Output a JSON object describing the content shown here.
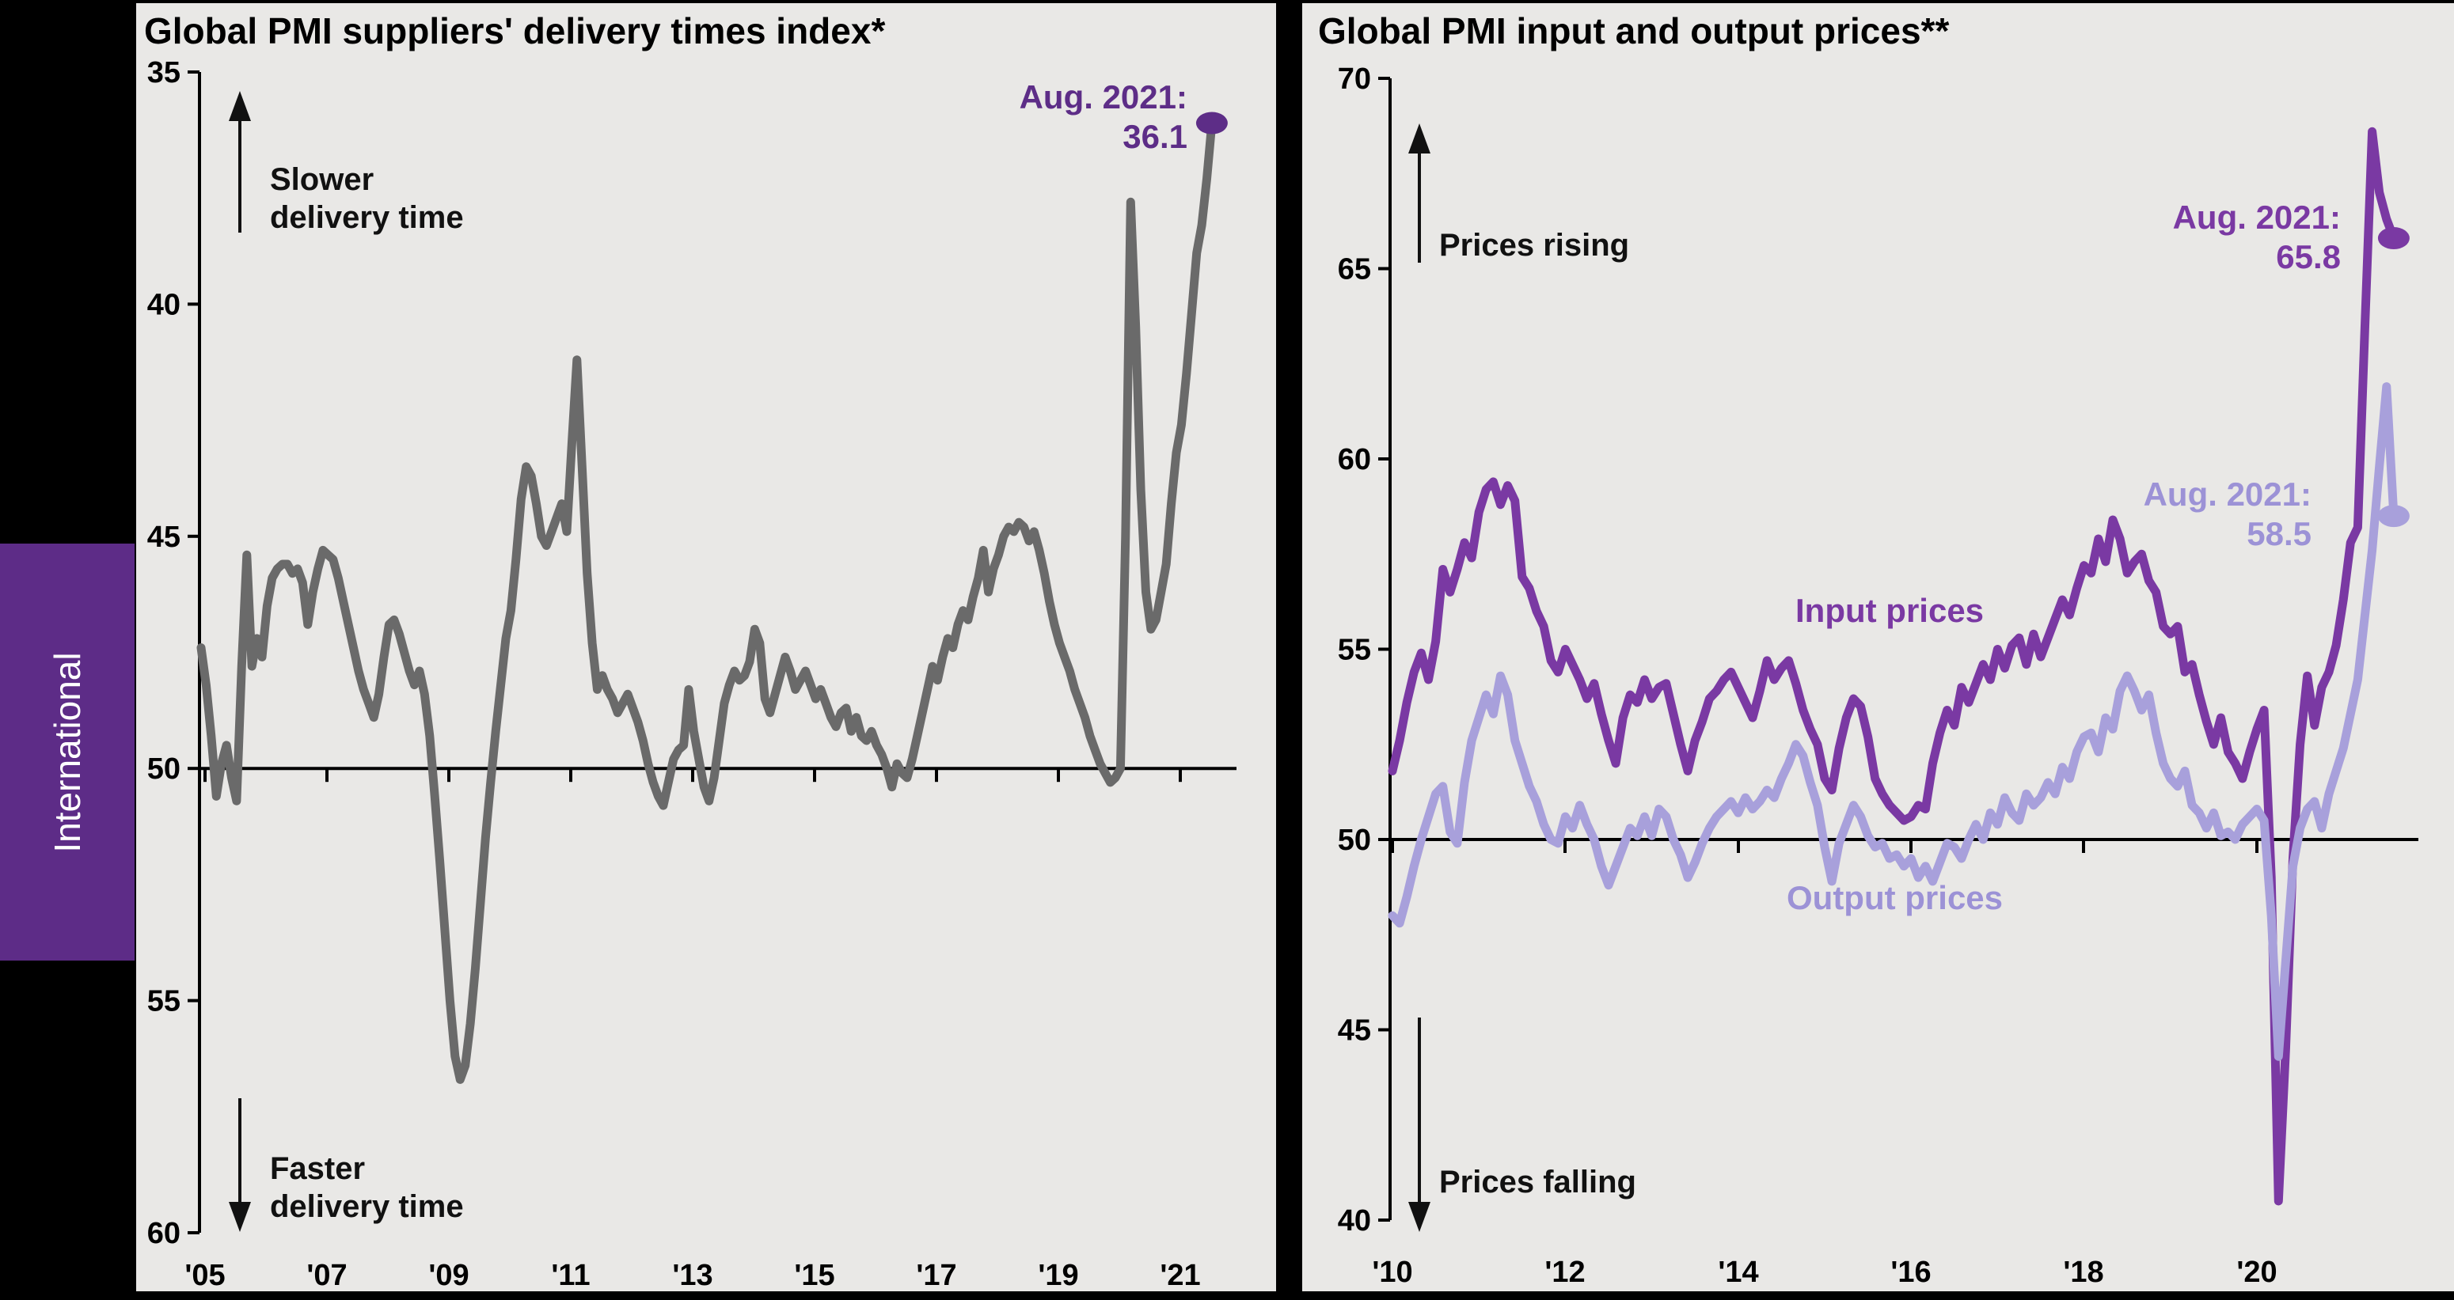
{
  "sidebar": {
    "label": "International",
    "bg_color": "#5d2c87"
  },
  "ui": {
    "left": {
      "title": "Global PMI suppliers' delivery times index*",
      "slower_label": "Slower\ndelivery time",
      "faster_label": "Faster\ndelivery time",
      "annotation": {
        "label": "Aug. 2021:",
        "value": "36.1",
        "color": "#5d2d87"
      }
    },
    "right": {
      "title": "Global PMI input and output prices**",
      "rising_label": "Prices rising",
      "falling_label": "Prices falling",
      "input_label": "Input prices",
      "output_label": "Output prices",
      "input_annotation": {
        "label": "Aug. 2021:",
        "value": "65.8",
        "color": "#7a39a3"
      },
      "output_annotation": {
        "label": "Aug. 2021:",
        "value": "58.5",
        "color": "#9c92d6"
      }
    }
  },
  "chart_data": [
    {
      "type": "line",
      "title": "Global PMI suppliers' delivery times index*",
      "y_axis_inverted": true,
      "ylim": [
        35,
        60
      ],
      "yticks": [
        35,
        40,
        45,
        50,
        55,
        60
      ],
      "baseline": 50,
      "x_start": "2005-01",
      "x_end": "2021-08",
      "x_tick_labels": [
        "'05",
        "'07",
        "'09",
        "'11",
        "'13",
        "'15",
        "'17",
        "'19",
        "'21"
      ],
      "grid": false,
      "legend_position": "none",
      "end_point": {
        "label": "Aug. 2021:",
        "value": 36.1,
        "color": "#5d2d87"
      },
      "series": [
        {
          "name": "Suppliers' delivery times index",
          "color": "#6a6a6a",
          "start": "2005-01",
          "frequency": "monthly",
          "values": [
            47.4,
            48.2,
            49.3,
            50.6,
            49.9,
            49.5,
            50.2,
            50.7,
            47.8,
            45.4,
            47.8,
            47.2,
            47.6,
            46.5,
            45.9,
            45.7,
            45.6,
            45.6,
            45.8,
            45.7,
            46.0,
            46.9,
            46.2,
            45.7,
            45.3,
            45.4,
            45.5,
            45.9,
            46.4,
            46.9,
            47.4,
            47.9,
            48.3,
            48.6,
            48.9,
            48.4,
            47.6,
            46.9,
            46.8,
            47.1,
            47.5,
            47.9,
            48.2,
            47.9,
            48.4,
            49.3,
            50.6,
            52.0,
            53.5,
            55.0,
            56.2,
            56.7,
            56.4,
            55.5,
            54.3,
            52.9,
            51.5,
            50.3,
            49.2,
            48.2,
            47.2,
            46.6,
            45.5,
            44.2,
            43.5,
            43.7,
            44.3,
            45.0,
            45.2,
            44.9,
            44.6,
            44.3,
            44.9,
            43.0,
            41.2,
            43.5,
            45.8,
            47.3,
            48.3,
            48.0,
            48.3,
            48.5,
            48.8,
            48.6,
            48.4,
            48.7,
            49.0,
            49.4,
            49.9,
            50.3,
            50.6,
            50.8,
            50.3,
            49.8,
            49.6,
            49.5,
            48.3,
            49.2,
            49.8,
            50.4,
            50.7,
            50.2,
            49.4,
            48.6,
            48.2,
            47.9,
            48.1,
            48.0,
            47.7,
            47.0,
            47.3,
            48.5,
            48.8,
            48.4,
            48.0,
            47.6,
            47.9,
            48.3,
            48.1,
            47.9,
            48.2,
            48.5,
            48.3,
            48.6,
            48.9,
            49.1,
            48.8,
            48.7,
            49.2,
            48.9,
            49.3,
            49.4,
            49.2,
            49.5,
            49.7,
            50.0,
            50.4,
            49.9,
            50.1,
            50.2,
            49.8,
            49.3,
            48.8,
            48.3,
            47.8,
            48.1,
            47.6,
            47.2,
            47.4,
            46.9,
            46.6,
            46.8,
            46.3,
            45.9,
            45.3,
            46.2,
            45.7,
            45.4,
            45.0,
            44.8,
            44.9,
            44.7,
            44.8,
            45.1,
            44.9,
            45.3,
            45.8,
            46.4,
            46.9,
            47.3,
            47.6,
            47.9,
            48.3,
            48.6,
            48.9,
            49.3,
            49.6,
            49.9,
            50.1,
            50.3,
            50.2,
            50.0,
            45.0,
            37.8,
            40.5,
            44.0,
            46.2,
            47.0,
            46.8,
            46.2,
            45.6,
            44.3,
            43.2,
            42.6,
            41.5,
            40.2,
            38.9,
            38.3,
            37.3,
            36.1
          ]
        }
      ]
    },
    {
      "type": "line",
      "title": "Global PMI input and output prices**",
      "y_axis_inverted": false,
      "ylim": [
        40,
        70
      ],
      "yticks": [
        70,
        65,
        60,
        55,
        50,
        45,
        40
      ],
      "baseline": 50,
      "x_start": "2010-01",
      "x_end": "2021-08",
      "x_tick_labels": [
        "'10",
        "'12",
        "'14",
        "'16",
        "'18",
        "'20"
      ],
      "grid": false,
      "legend_position": "inline-labels",
      "series": [
        {
          "name": "Input prices",
          "color": "#7a39a3",
          "start": "2010-01",
          "frequency": "monthly",
          "end_point": {
            "label": "Aug. 2021:",
            "value": 65.8
          },
          "values": [
            51.8,
            52.6,
            53.6,
            54.4,
            54.9,
            54.2,
            55.2,
            57.1,
            56.5,
            57.1,
            57.8,
            57.4,
            58.6,
            59.2,
            59.4,
            58.8,
            59.3,
            58.9,
            56.9,
            56.6,
            56.0,
            55.6,
            54.7,
            54.4,
            55.0,
            54.6,
            54.2,
            53.7,
            54.1,
            53.3,
            52.6,
            52.0,
            53.2,
            53.8,
            53.6,
            54.2,
            53.7,
            54.0,
            54.1,
            53.3,
            52.5,
            51.8,
            52.6,
            53.1,
            53.7,
            53.9,
            54.2,
            54.4,
            54.0,
            53.6,
            53.2,
            53.9,
            54.7,
            54.2,
            54.5,
            54.7,
            54.1,
            53.4,
            52.9,
            52.5,
            51.6,
            51.3,
            52.4,
            53.2,
            53.7,
            53.5,
            52.7,
            51.6,
            51.2,
            50.9,
            50.7,
            50.5,
            50.6,
            50.9,
            50.8,
            52.0,
            52.8,
            53.4,
            53.0,
            54.0,
            53.6,
            54.1,
            54.6,
            54.2,
            55.0,
            54.5,
            55.1,
            55.3,
            54.6,
            55.4,
            54.8,
            55.3,
            55.8,
            56.3,
            55.9,
            56.6,
            57.2,
            57.0,
            57.9,
            57.3,
            58.4,
            57.9,
            57.0,
            57.3,
            57.5,
            56.8,
            56.5,
            55.6,
            55.4,
            55.6,
            54.4,
            54.6,
            53.8,
            53.1,
            52.5,
            53.2,
            52.3,
            52.0,
            51.6,
            52.3,
            52.9,
            53.4,
            49.0,
            40.5,
            44.5,
            49.5,
            52.5,
            54.3,
            53.0,
            54.0,
            54.4,
            55.1,
            56.3,
            57.8,
            58.2,
            63.5,
            68.6,
            67.0,
            66.3,
            65.8
          ]
        },
        {
          "name": "Output prices",
          "color": "#a8a0db",
          "start": "2010-01",
          "frequency": "monthly",
          "end_point": {
            "label": "Aug. 2021:",
            "value": 58.5
          },
          "values": [
            48.0,
            47.8,
            48.5,
            49.3,
            50.0,
            50.6,
            51.2,
            51.4,
            50.2,
            49.9,
            51.5,
            52.6,
            53.2,
            53.8,
            53.3,
            54.3,
            53.8,
            52.6,
            52.0,
            51.4,
            51.0,
            50.4,
            50.0,
            49.9,
            50.6,
            50.3,
            50.9,
            50.4,
            50.0,
            49.3,
            48.8,
            49.3,
            49.8,
            50.3,
            50.1,
            50.6,
            50.1,
            50.8,
            50.6,
            50.0,
            49.6,
            49.0,
            49.4,
            49.9,
            50.3,
            50.6,
            50.8,
            51.0,
            50.7,
            51.1,
            50.8,
            51.0,
            51.3,
            51.1,
            51.6,
            52.0,
            52.5,
            52.2,
            51.5,
            50.9,
            49.8,
            48.9,
            49.9,
            50.4,
            50.9,
            50.6,
            50.1,
            49.8,
            49.9,
            49.5,
            49.6,
            49.3,
            49.5,
            49.0,
            49.3,
            48.9,
            49.4,
            49.9,
            49.8,
            49.5,
            50.0,
            50.4,
            50.0,
            50.7,
            50.4,
            51.1,
            50.7,
            50.5,
            51.2,
            50.9,
            51.1,
            51.5,
            51.2,
            51.9,
            51.6,
            52.3,
            52.7,
            52.8,
            52.3,
            53.2,
            52.9,
            53.9,
            54.3,
            53.9,
            53.4,
            53.8,
            52.8,
            52.0,
            51.6,
            51.4,
            51.8,
            50.9,
            50.7,
            50.3,
            50.7,
            50.1,
            50.2,
            50.0,
            50.4,
            50.6,
            50.8,
            50.5,
            48.0,
            44.3,
            46.8,
            49.3,
            50.3,
            50.8,
            51.0,
            50.3,
            51.2,
            51.8,
            52.4,
            53.3,
            54.2,
            55.9,
            57.6,
            59.8,
            61.9,
            58.5
          ]
        }
      ]
    }
  ]
}
